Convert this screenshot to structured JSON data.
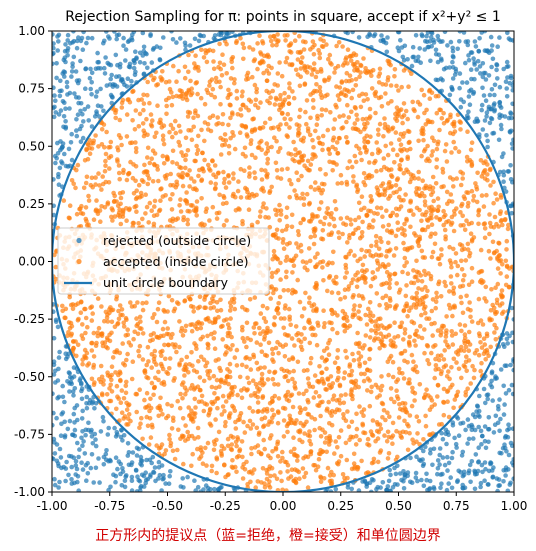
{
  "chart_data": {
    "type": "scatter",
    "title": "Rejection Sampling for π: points in square, accept if x²+y² ≤ 1",
    "xlim": [
      -1.0,
      1.0
    ],
    "ylim": [
      -1.0,
      1.0
    ],
    "x_ticks": [
      "-1.00",
      "-0.75",
      "-0.50",
      "-0.25",
      "0.00",
      "0.25",
      "0.50",
      "0.75",
      "1.00"
    ],
    "y_ticks": [
      "1.00",
      "0.75",
      "0.50",
      "0.25",
      "0.00",
      "-0.25",
      "-0.50",
      "-0.75",
      "-1.00"
    ],
    "grid": false,
    "legend": {
      "position": "center-left",
      "entries": [
        "rejected (outside circle)",
        "accepted (inside circle)",
        "unit circle boundary"
      ]
    },
    "series": [
      {
        "name": "rejected (outside circle)",
        "color": "#1f77b4",
        "kind": "points",
        "region": "x²+y² > 1",
        "sample_count": 1100
      },
      {
        "name": "accepted (inside circle)",
        "color": "#ff7f0e",
        "kind": "points",
        "region": "x²+y² ≤ 1",
        "sample_count": 3900
      },
      {
        "name": "unit circle boundary",
        "color": "#1f77b4",
        "kind": "line",
        "equation": "x²+y²=1"
      }
    ],
    "caption": "正方形内的提议点（蓝=拒绝，橙=接受）和单位圆边界"
  }
}
